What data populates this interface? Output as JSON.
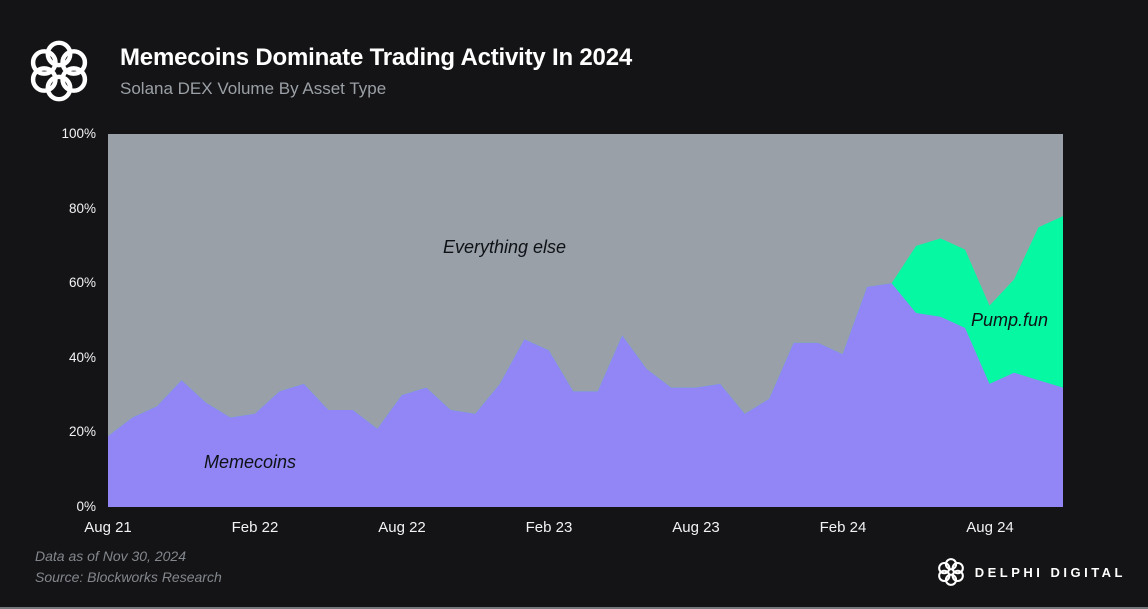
{
  "header": {
    "title": "Memecoins Dominate Trading Activity In 2024",
    "subtitle": "Solana DEX Volume By Asset Type"
  },
  "footer": {
    "data_as_of": "Data as of Nov 30, 2024",
    "source": "Source: Blockworks Research"
  },
  "brand": {
    "name": "DELPHI DIGITAL",
    "header_icon": "delphi-knot-logo",
    "footer_icon": "delphi-knot-logo"
  },
  "chart_data": {
    "type": "area",
    "stacked": true,
    "title": "Memecoins Dominate Trading Activity In 2024",
    "subtitle": "Solana DEX Volume By Asset Type",
    "unit": "percent share of volume",
    "ylim": [
      0,
      100
    ],
    "grid": false,
    "legend": "in-plot labels",
    "x": [
      "Aug 2021",
      "Sep 2021",
      "Oct 2021",
      "Nov 2021",
      "Dec 2021",
      "Jan 2022",
      "Feb 2022",
      "Mar 2022",
      "Apr 2022",
      "May 2022",
      "Jun 2022",
      "Jul 2022",
      "Aug 2022",
      "Sep 2022",
      "Oct 2022",
      "Nov 2022",
      "Dec 2022",
      "Jan 2023",
      "Feb 2023",
      "Mar 2023",
      "Apr 2023",
      "May 2023",
      "Jun 2023",
      "Jul 2023",
      "Aug 2023",
      "Sep 2023",
      "Oct 2023",
      "Nov 2023",
      "Dec 2023",
      "Jan 2024",
      "Feb 2024",
      "Mar 2024",
      "Apr 2024",
      "May 2024",
      "Jun 2024",
      "Jul 2024",
      "Aug 2024",
      "Sep 2024",
      "Oct 2024",
      "Nov 2024"
    ],
    "x_tick_labels": [
      "Aug 21",
      "Feb 22",
      "Aug 22",
      "Feb 23",
      "Aug 23",
      "Feb 24",
      "Aug 24"
    ],
    "x_tick_indices": [
      0,
      6,
      12,
      18,
      24,
      30,
      36
    ],
    "y_ticks": [
      "0%",
      "20%",
      "40%",
      "60%",
      "80%",
      "100%"
    ],
    "series": [
      {
        "name": "Memecoins",
        "color": "#9285f5",
        "values": [
          19,
          24,
          27,
          34,
          28,
          24,
          25,
          31,
          33,
          26,
          26,
          21,
          30,
          32,
          26,
          25,
          33,
          45,
          42,
          31,
          31,
          46,
          37,
          32,
          32,
          33,
          25,
          29,
          44,
          44,
          41,
          59,
          60,
          52,
          51,
          48,
          33,
          36,
          34,
          32
        ]
      },
      {
        "name": "Pump.fun",
        "color": "#06f9a2",
        "values": [
          0,
          0,
          0,
          0,
          0,
          0,
          0,
          0,
          0,
          0,
          0,
          0,
          0,
          0,
          0,
          0,
          0,
          0,
          0,
          0,
          0,
          0,
          0,
          0,
          0,
          0,
          0,
          0,
          0,
          0,
          0,
          0,
          0,
          18,
          21,
          21,
          21,
          25,
          41,
          46
        ]
      },
      {
        "name": "Everything else",
        "color": "#99a0a8",
        "values": [
          81,
          76,
          73,
          66,
          72,
          76,
          75,
          69,
          67,
          74,
          74,
          79,
          70,
          68,
          74,
          75,
          67,
          55,
          58,
          69,
          69,
          54,
          63,
          68,
          68,
          67,
          75,
          71,
          56,
          56,
          59,
          41,
          40,
          30,
          28,
          31,
          46,
          39,
          25,
          22
        ]
      }
    ],
    "annotations": [
      {
        "label": "Everything else"
      },
      {
        "label": "Memecoins"
      },
      {
        "label": "Pump.fun"
      }
    ]
  }
}
